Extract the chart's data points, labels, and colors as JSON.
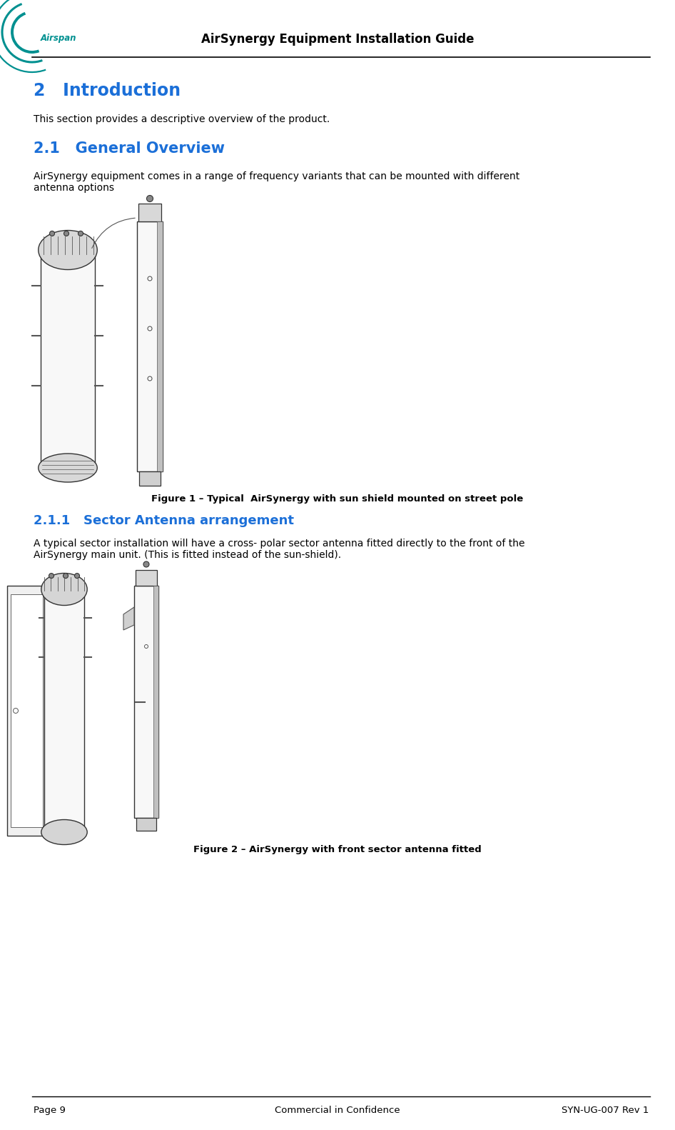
{
  "header_title": "AirSynergy Equipment Installation Guide",
  "header_title_fontsize": 12,
  "logo_text": "Airspan",
  "logo_color": "#009090",
  "section2_heading": "2   Introduction",
  "section2_heading_color": "#1B6FD8",
  "section2_heading_fontsize": 17,
  "section2_body": "This section provides a descriptive overview of the product.",
  "section21_heading": "2.1   General Overview",
  "section21_heading_color": "#1B6FD8",
  "section21_heading_fontsize": 15,
  "section21_body": "AirSynergy equipment comes in a range of frequency variants that can be mounted with different\nantenna options",
  "figure1_caption": "Figure 1 – Typical  AirSynergy with sun shield mounted on street pole",
  "section211_heading": "2.1.1   Sector Antenna arrangement",
  "section211_heading_color": "#1B6FD8",
  "section211_heading_fontsize": 13,
  "section211_body": "A typical sector installation will have a cross- polar sector antenna fitted directly to the front of the\nAirSynergy main unit. (This is fitted instead of the sun-shield).",
  "figure2_caption": "Figure 2 – AirSynergy with front sector antenna fitted",
  "footer_left": "Page 9",
  "footer_center": "Commercial in Confidence",
  "footer_right": "SYN-UG-007 Rev 1",
  "footer_fontsize": 9.5,
  "body_fontsize": 10,
  "body_color": "#000000",
  "bg_color": "#ffffff",
  "line_color": "#000000"
}
